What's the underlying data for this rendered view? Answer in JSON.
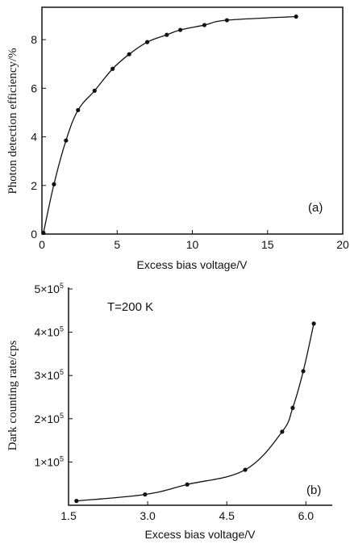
{
  "chart_data": [
    {
      "type": "line",
      "panel_label": "(a)",
      "xlabel": "Excess bias voltage/V",
      "ylabel": "Photon detection efficiency/%",
      "xlim": [
        0,
        20
      ],
      "ylim": [
        0,
        9.2
      ],
      "xticks": [
        0,
        5,
        10,
        15,
        20
      ],
      "yticks": [
        0,
        2,
        4,
        6,
        8
      ],
      "xtick_labels": [
        "0",
        "5",
        "10",
        "15",
        "20"
      ],
      "ytick_labels": [
        "0",
        "2",
        "4",
        "6",
        "8"
      ],
      "series": [
        {
          "x": [
            0.1,
            0.8,
            1.6,
            2.4,
            3.5,
            4.7,
            5.8,
            7.0,
            8.3,
            9.2,
            10.8,
            12.3,
            16.9
          ],
          "y": [
            0.05,
            2.05,
            3.85,
            5.1,
            5.9,
            6.8,
            7.4,
            7.9,
            8.2,
            8.4,
            8.6,
            8.8,
            8.95
          ]
        }
      ],
      "grid": false
    },
    {
      "type": "line",
      "panel_label": "(b)",
      "annotation": "T=200 K",
      "xlabel": "Excess bias voltage/V",
      "ylabel": "Dark counting rate/cps",
      "xlim": [
        1.5,
        6.5
      ],
      "ylim": [
        0,
        500000
      ],
      "xticks": [
        1.5,
        3.0,
        4.5,
        6.0
      ],
      "xtick_labels": [
        "1.5",
        "3.0",
        "4.5",
        "6.0"
      ],
      "yticks": [
        100000,
        200000,
        300000,
        400000,
        500000
      ],
      "ytick_labels": [
        {
          "base": "1×10",
          "exp": "5"
        },
        {
          "base": "2×10",
          "exp": "5"
        },
        {
          "base": "3×10",
          "exp": "5"
        },
        {
          "base": "4×10",
          "exp": "5"
        },
        {
          "base": "5×10",
          "exp": "5"
        }
      ],
      "series": [
        {
          "x": [
            1.65,
            2.95,
            3.75,
            4.85,
            5.55,
            5.75,
            5.95,
            6.15
          ],
          "y": [
            10000,
            25000,
            48000,
            82000,
            170000,
            225000,
            310000,
            420000
          ]
        }
      ],
      "grid": false
    }
  ]
}
